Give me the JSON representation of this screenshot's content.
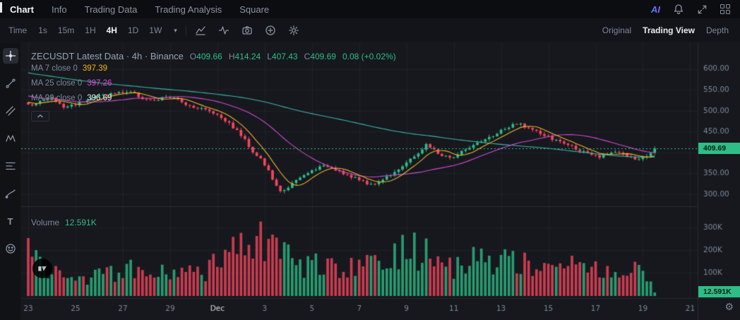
{
  "topbar": {
    "tabs": [
      {
        "label": "Chart",
        "active": true
      },
      {
        "label": "Info",
        "active": false
      },
      {
        "label": "Trading Data",
        "active": false
      },
      {
        "label": "Trading Analysis",
        "active": false
      },
      {
        "label": "Square",
        "active": false
      }
    ],
    "ai_label": "AI"
  },
  "toolbar": {
    "time_label": "Time",
    "intervals": [
      "1s",
      "15m",
      "1H",
      "4H",
      "1D",
      "1W"
    ],
    "active_interval": "4H",
    "views": [
      "Original",
      "Trading View",
      "Depth"
    ],
    "active_view": "Trading View"
  },
  "glyphs": {
    "caret_down": "▾",
    "gear": "⚙",
    "text_tool": "T"
  },
  "legend": {
    "title": "ZECUSDT Latest Data · 4h · Binance",
    "ohlc": [
      {
        "k": "O",
        "v": "409.66"
      },
      {
        "k": "H",
        "v": "414.24"
      },
      {
        "k": "L",
        "v": "407.43"
      },
      {
        "k": "C",
        "v": "409.69"
      }
    ],
    "change": "0.08 (+0.02%)",
    "ma": [
      {
        "label": "MA 7 close 0",
        "value": "397.39",
        "color": "#f0b90b"
      },
      {
        "label": "MA 25 close 0",
        "value": "397.26",
        "color": "#e24bd6"
      },
      {
        "label": "MA 99 close 0",
        "value": "396.69",
        "color": "#e9f3f1"
      }
    ]
  },
  "volume_legend": {
    "label": "Volume",
    "value": "12.591K"
  },
  "tags": {
    "price": "409.69",
    "volume": "12.591K"
  },
  "chart_data": {
    "type": "candlestick",
    "symbol": "ZECUSDT",
    "interval": "4h",
    "exchange": "Binance",
    "up_color": "#2ebd85",
    "down_color": "#f6465d",
    "current_price": 409.69,
    "current_volume_k": 12.591,
    "ma": [
      {
        "period": 7,
        "color": "#edb32f"
      },
      {
        "period": 25,
        "color": "#cf4ccf"
      },
      {
        "period": 99,
        "color": "#3eb3a8"
      }
    ],
    "price_axis": {
      "ticks": [
        [
          600,
          "600.00"
        ],
        [
          550,
          "550.00"
        ],
        [
          500,
          "500.00"
        ],
        [
          450,
          "450.00"
        ],
        [
          350,
          "350.00"
        ],
        [
          300,
          "300.00"
        ]
      ],
      "grid": [
        600,
        550,
        500,
        450,
        400,
        350,
        300
      ]
    },
    "volume_axis": {
      "ticks": [
        [
          300,
          "300K"
        ],
        [
          200,
          "200K"
        ],
        [
          100,
          "100K"
        ]
      ],
      "grid": [
        300,
        200,
        100
      ]
    },
    "x_axis": [
      {
        "label": "23",
        "i": 0
      },
      {
        "label": "25",
        "i": 12
      },
      {
        "label": "27",
        "i": 24
      },
      {
        "label": "29",
        "i": 36
      },
      {
        "label": "Dec",
        "i": 48,
        "strong": true
      },
      {
        "label": "3",
        "i": 60
      },
      {
        "label": "5",
        "i": 72
      },
      {
        "label": "7",
        "i": 84
      },
      {
        "label": "9",
        "i": 96
      },
      {
        "label": "11",
        "i": 108
      },
      {
        "label": "13",
        "i": 120
      },
      {
        "label": "15",
        "i": 132
      },
      {
        "label": "17",
        "i": 144
      },
      {
        "label": "19",
        "i": 156
      },
      {
        "label": "21",
        "i": 168
      }
    ],
    "candle_count": 160,
    "close_keypoints": [
      [
        0,
        512
      ],
      [
        3,
        524
      ],
      [
        6,
        530
      ],
      [
        9,
        508
      ],
      [
        12,
        516
      ],
      [
        15,
        528
      ],
      [
        18,
        536
      ],
      [
        22,
        542
      ],
      [
        26,
        546
      ],
      [
        29,
        530
      ],
      [
        32,
        522
      ],
      [
        35,
        534
      ],
      [
        38,
        526
      ],
      [
        41,
        512
      ],
      [
        44,
        505
      ],
      [
        47,
        496
      ],
      [
        50,
        478
      ],
      [
        53,
        452
      ],
      [
        55,
        430
      ],
      [
        57,
        402
      ],
      [
        59,
        385
      ],
      [
        61,
        355
      ],
      [
        63,
        318
      ],
      [
        64,
        305
      ],
      [
        66,
        318
      ],
      [
        68,
        332
      ],
      [
        70,
        345
      ],
      [
        73,
        362
      ],
      [
        76,
        368
      ],
      [
        79,
        356
      ],
      [
        82,
        340
      ],
      [
        85,
        332
      ],
      [
        87,
        322
      ],
      [
        89,
        330
      ],
      [
        92,
        348
      ],
      [
        95,
        368
      ],
      [
        97,
        382
      ],
      [
        100,
        408
      ],
      [
        101,
        418
      ],
      [
        103,
        405
      ],
      [
        105,
        392
      ],
      [
        108,
        388
      ],
      [
        111,
        408
      ],
      [
        114,
        420
      ],
      [
        117,
        435
      ],
      [
        120,
        452
      ],
      [
        123,
        465
      ],
      [
        125,
        468
      ],
      [
        127,
        458
      ],
      [
        130,
        445
      ],
      [
        133,
        432
      ],
      [
        136,
        422
      ],
      [
        139,
        410
      ],
      [
        142,
        396
      ],
      [
        145,
        388
      ],
      [
        147,
        398
      ],
      [
        149,
        404
      ],
      [
        151,
        396
      ],
      [
        153,
        386
      ],
      [
        155,
        382
      ],
      [
        157,
        392
      ],
      [
        158,
        400
      ],
      [
        159,
        409.69
      ]
    ],
    "volume_keypoints_k": [
      [
        0,
        240
      ],
      [
        2,
        180
      ],
      [
        5,
        90
      ],
      [
        10,
        110
      ],
      [
        15,
        80
      ],
      [
        20,
        95
      ],
      [
        25,
        120
      ],
      [
        30,
        85
      ],
      [
        35,
        100
      ],
      [
        40,
        90
      ],
      [
        45,
        110
      ],
      [
        50,
        160
      ],
      [
        54,
        200
      ],
      [
        56,
        330
      ],
      [
        58,
        240
      ],
      [
        60,
        260
      ],
      [
        62,
        210
      ],
      [
        64,
        180
      ],
      [
        68,
        140
      ],
      [
        72,
        120
      ],
      [
        76,
        150
      ],
      [
        80,
        110
      ],
      [
        84,
        130
      ],
      [
        88,
        160
      ],
      [
        92,
        170
      ],
      [
        96,
        200
      ],
      [
        100,
        190
      ],
      [
        104,
        150
      ],
      [
        108,
        120
      ],
      [
        112,
        160
      ],
      [
        116,
        140
      ],
      [
        120,
        180
      ],
      [
        124,
        160
      ],
      [
        128,
        130
      ],
      [
        132,
        110
      ],
      [
        136,
        100
      ],
      [
        140,
        150
      ],
      [
        144,
        120
      ],
      [
        148,
        90
      ],
      [
        152,
        130
      ],
      [
        156,
        110
      ],
      [
        159,
        12.591
      ]
    ],
    "prehistory": {
      "start": 668,
      "end": 518,
      "count": 99
    }
  }
}
